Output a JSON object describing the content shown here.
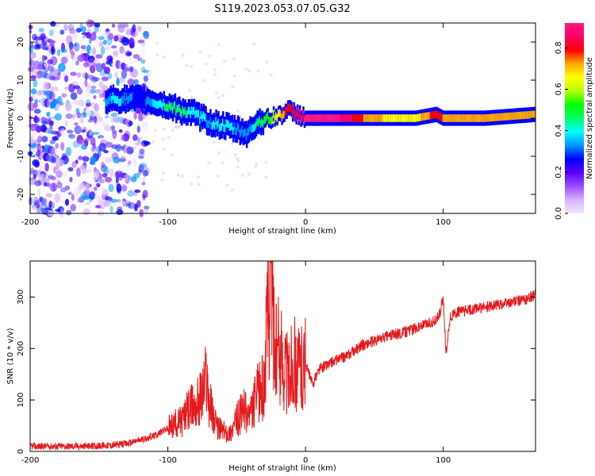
{
  "figure": {
    "title": "S119.2023.053.07.05.G32"
  },
  "colors": {
    "snr_line": "#e41a1c",
    "colormap": [
      "#f2e6ff",
      "#d6b3ff",
      "#9b4dff",
      "#5a00ff",
      "#0000ff",
      "#0096ff",
      "#00ffff",
      "#00ff64",
      "#00ff00",
      "#b4ff00",
      "#ffff00",
      "#ffaa00",
      "#ff0000",
      "#ff0064",
      "#ff1a80"
    ]
  },
  "chart_data": [
    {
      "type": "heatmap",
      "xlabel": "Height of straight line (km)",
      "ylabel": "Frequency (Hz)",
      "xlim": [
        -200,
        167
      ],
      "ylim": [
        -25,
        25
      ],
      "x_ticks": [
        "-200",
        "-100",
        "0",
        "100"
      ],
      "y_ticks": [
        "-20",
        "-10",
        "0",
        "10",
        "20"
      ],
      "colorbar": {
        "label": "Normalized spectral amplitude",
        "range": [
          0.0,
          0.92
        ],
        "ticks": [
          "0.0",
          "0.2",
          "0.4",
          "0.6",
          "0.8"
        ]
      },
      "ridge": [
        {
          "x": -145,
          "y": 5,
          "amp": 0.3
        },
        {
          "x": -138,
          "y": 5,
          "amp": 0.4
        },
        {
          "x": -120,
          "y": 5,
          "amp": 0.25
        },
        {
          "x": -108,
          "y": 4,
          "amp": 0.4
        },
        {
          "x": -98,
          "y": 3,
          "amp": 0.45
        },
        {
          "x": -90,
          "y": 2,
          "amp": 0.45
        },
        {
          "x": -80,
          "y": 1,
          "amp": 0.4
        },
        {
          "x": -70,
          "y": -1,
          "amp": 0.35
        },
        {
          "x": -60,
          "y": -2,
          "amp": 0.4
        },
        {
          "x": -50,
          "y": -3,
          "amp": 0.35
        },
        {
          "x": -42,
          "y": -4,
          "amp": 0.3
        },
        {
          "x": -35,
          "y": -1,
          "amp": 0.45
        },
        {
          "x": -25,
          "y": 0,
          "amp": 0.55
        },
        {
          "x": -18,
          "y": 1,
          "amp": 0.7
        },
        {
          "x": -12,
          "y": 2,
          "amp": 0.8
        },
        {
          "x": -5,
          "y": 1,
          "amp": 0.85
        },
        {
          "x": 0,
          "y": 0,
          "amp": 0.9
        },
        {
          "x": 20,
          "y": 0,
          "amp": 0.92
        },
        {
          "x": 50,
          "y": 0,
          "amp": 0.7
        },
        {
          "x": 80,
          "y": 0,
          "amp": 0.65
        },
        {
          "x": 95,
          "y": 1,
          "amp": 0.8
        },
        {
          "x": 100,
          "y": 0,
          "amp": 0.75
        },
        {
          "x": 130,
          "y": 0,
          "amp": 0.7
        },
        {
          "x": 167,
          "y": 1,
          "amp": 0.72
        }
      ]
    },
    {
      "type": "line",
      "xlabel": "Height of straight line (km)",
      "ylabel": "SNR (10 * v/v)",
      "xlim": [
        -200,
        167
      ],
      "ylim": [
        0,
        370
      ],
      "x_ticks": [
        "-200",
        "-100",
        "0",
        "100"
      ],
      "y_ticks": [
        "0",
        "100",
        "200",
        "300"
      ],
      "series": [
        {
          "x": [
            -200,
            -180,
            -160,
            -140,
            -130,
            -120,
            -110,
            -100,
            -90,
            -85,
            -80,
            -75,
            -72,
            -70,
            -65,
            -60,
            -55,
            -50,
            -45,
            -40,
            -35,
            -30,
            -27,
            -25,
            -22,
            -20,
            -15,
            -12,
            -10,
            -5,
            0,
            5,
            10,
            20,
            30,
            40,
            50,
            60,
            70,
            80,
            90,
            95,
            98,
            100,
            102,
            105,
            110,
            120,
            130,
            140,
            150,
            160,
            167
          ],
          "y": [
            10,
            10,
            10,
            12,
            15,
            22,
            30,
            45,
            60,
            80,
            90,
            110,
            150,
            100,
            50,
            40,
            35,
            60,
            80,
            70,
            110,
            130,
            290,
            360,
            180,
            200,
            170,
            140,
            180,
            160,
            170,
            130,
            160,
            175,
            185,
            205,
            215,
            225,
            230,
            240,
            250,
            255,
            270,
            300,
            190,
            260,
            270,
            275,
            280,
            285,
            290,
            295,
            305
          ]
        }
      ]
    }
  ]
}
